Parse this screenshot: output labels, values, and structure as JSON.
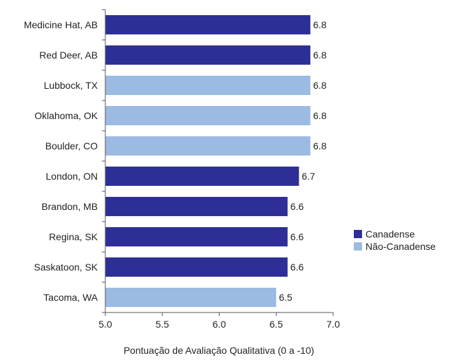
{
  "chart_data": {
    "type": "bar",
    "orientation": "horizontal",
    "title": "",
    "xlabel": "Pontuação de Avaliação Qualitativa (0 a -10)",
    "ylabel": "",
    "xlim": [
      5.0,
      7.0
    ],
    "xticks": [
      "5.0",
      "5.5",
      "6.0",
      "6.5",
      "7.0"
    ],
    "grid": false,
    "legend_position": "right",
    "categories": [
      "Medicine Hat, AB",
      "Red Deer, AB",
      "Lubbock, TX",
      "Oklahoma, OK",
      "Boulder, CO",
      "London, ON",
      "Brandon, MB",
      "Regina, SK",
      "Saskatoon, SK",
      "Tacoma, WA"
    ],
    "values": [
      6.8,
      6.8,
      6.8,
      6.8,
      6.8,
      6.7,
      6.6,
      6.6,
      6.6,
      6.5
    ],
    "value_labels": [
      "6.8",
      "6.8",
      "6.8",
      "6.8",
      "6.8",
      "6.7",
      "6.6",
      "6.6",
      "6.6",
      "6.5"
    ],
    "groups": [
      "canadian",
      "canadian",
      "non_canadian",
      "non_canadian",
      "non_canadian",
      "canadian",
      "canadian",
      "canadian",
      "canadian",
      "non_canadian"
    ],
    "legend": [
      {
        "key": "canadian",
        "name": "Canadense",
        "color": "#2e2f96"
      },
      {
        "key": "non_canadian",
        "name": "Não-Canadense",
        "color": "#9bbbe2"
      }
    ]
  }
}
